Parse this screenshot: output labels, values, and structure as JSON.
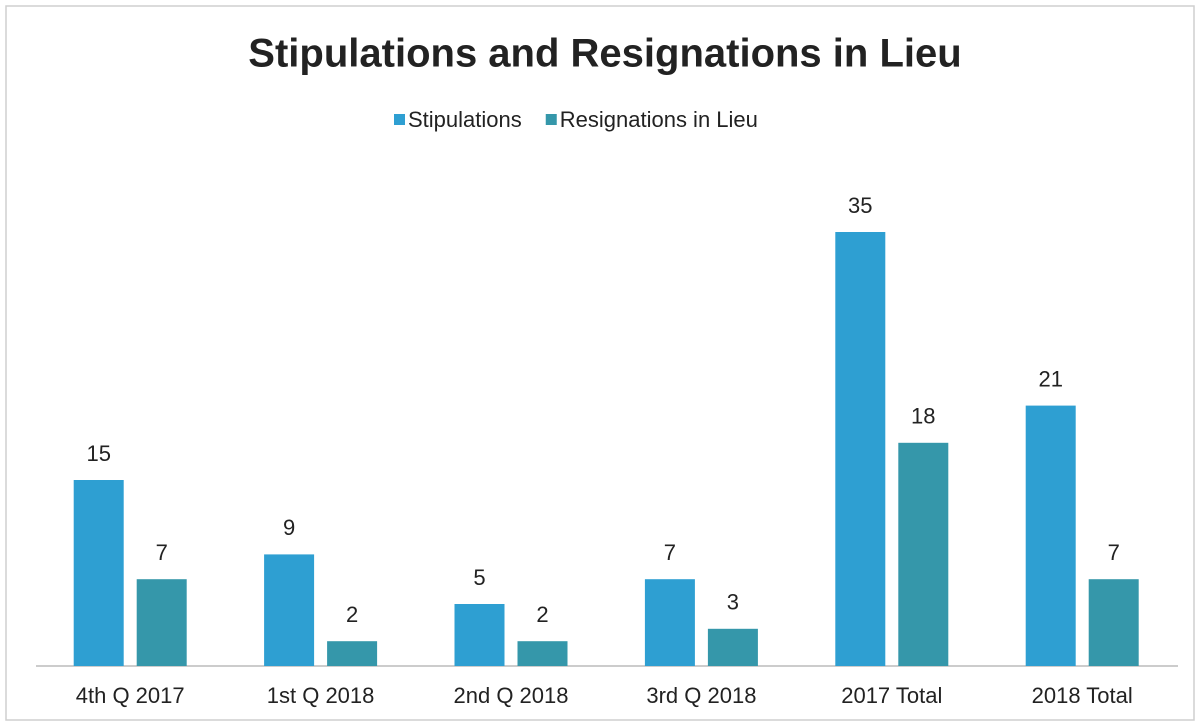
{
  "chart_data": {
    "type": "bar",
    "title": "Stipulations and Resignations in Lieu",
    "categories": [
      "4th Q 2017",
      "1st Q 2018",
      "2nd Q 2018",
      "3rd Q 2018",
      "2017 Total",
      "2018 Total"
    ],
    "series": [
      {
        "name": "Stipulations",
        "color": "#2e9fd2",
        "values": [
          15,
          9,
          5,
          7,
          35,
          21
        ]
      },
      {
        "name": "Resignations in Lieu",
        "color": "#3597aa",
        "values": [
          7,
          2,
          2,
          3,
          18,
          7
        ]
      }
    ],
    "legend": "top"
  }
}
